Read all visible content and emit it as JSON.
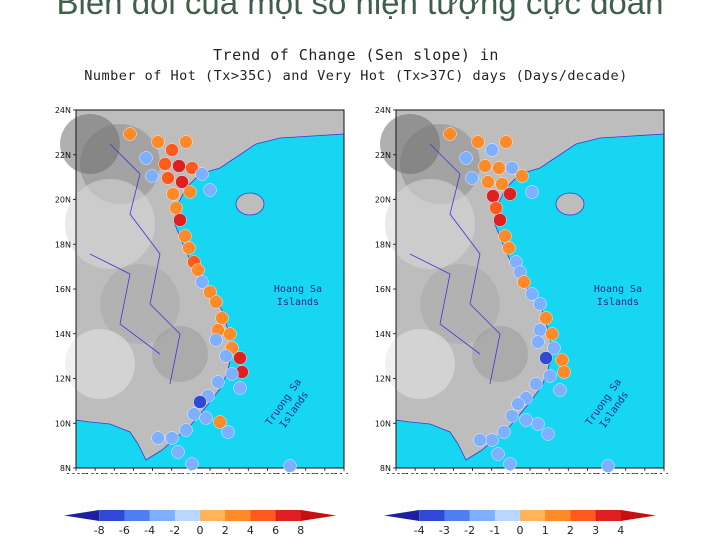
{
  "slide": {
    "title": "Biến đổi của một số hiện tượng cực đoan"
  },
  "figure": {
    "title_line1": "Trend of Change (Sen slope) in",
    "title_line2": "Number of Hot (Tx>35C) and Very Hot (Tx>37C) days (Days/decade)"
  },
  "map": {
    "lat_labels": [
      "24N",
      "22N",
      "20N",
      "18N",
      "16N",
      "14N",
      "12N",
      "10N",
      "8N"
    ],
    "lon_labels": [
      "100E",
      "101E",
      "102E",
      "103E",
      "104E",
      "105E",
      "106E",
      "107E",
      "108E",
      "109E",
      "110E",
      "111E",
      "112E",
      "113E",
      "114E"
    ],
    "hoang_sa_label": [
      "Hoang Sa",
      "Islands"
    ],
    "truong_sa_label": [
      "Truong Sa",
      "Islands"
    ],
    "sea_color": "#16d6f2",
    "land_color": "#bdbdbd"
  },
  "panels": [
    {
      "name": "hot-days-panel",
      "colorbar_ticks": [
        "-8",
        "-6",
        "-4",
        "-2",
        "0",
        "2",
        "4",
        "6",
        "8"
      ],
      "colorbar_colors": [
        "#1e1ea0",
        "#2f48d6",
        "#4f7ef0",
        "#7fb0ff",
        "#b8d6ff",
        "#ffb45a",
        "#ff8a2a",
        "#ff5a1e",
        "#e02020",
        "#c80f0f"
      ]
    },
    {
      "name": "very-hot-days-panel",
      "colorbar_ticks": [
        "-4",
        "-3",
        "-2",
        "-1",
        "0",
        "1",
        "2",
        "3",
        "4"
      ],
      "colorbar_colors": [
        "#1e1ea0",
        "#2f48d6",
        "#4f7ef0",
        "#7fb0ff",
        "#b8d6ff",
        "#ffb45a",
        "#ff8a2a",
        "#ff5a1e",
        "#e02020",
        "#c80f0f"
      ]
    }
  ]
}
